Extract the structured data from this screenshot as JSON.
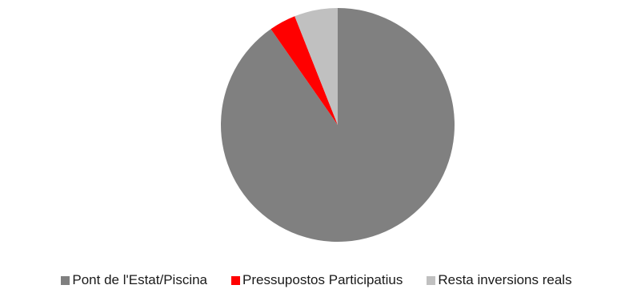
{
  "chart_data": {
    "type": "pie",
    "start_angle_deg": 0,
    "direction": "clockwise",
    "slices": [
      {
        "label": "Pont de l'Estat/Piscina",
        "value": 90.3,
        "color": "#808080"
      },
      {
        "label": "Pressupostos Participatius",
        "value": 3.7,
        "color": "#ff0000"
      },
      {
        "label": "Resta inversions reals",
        "value": 6.0,
        "color": "#c0c0c0"
      }
    ],
    "legend_position": "bottom"
  }
}
